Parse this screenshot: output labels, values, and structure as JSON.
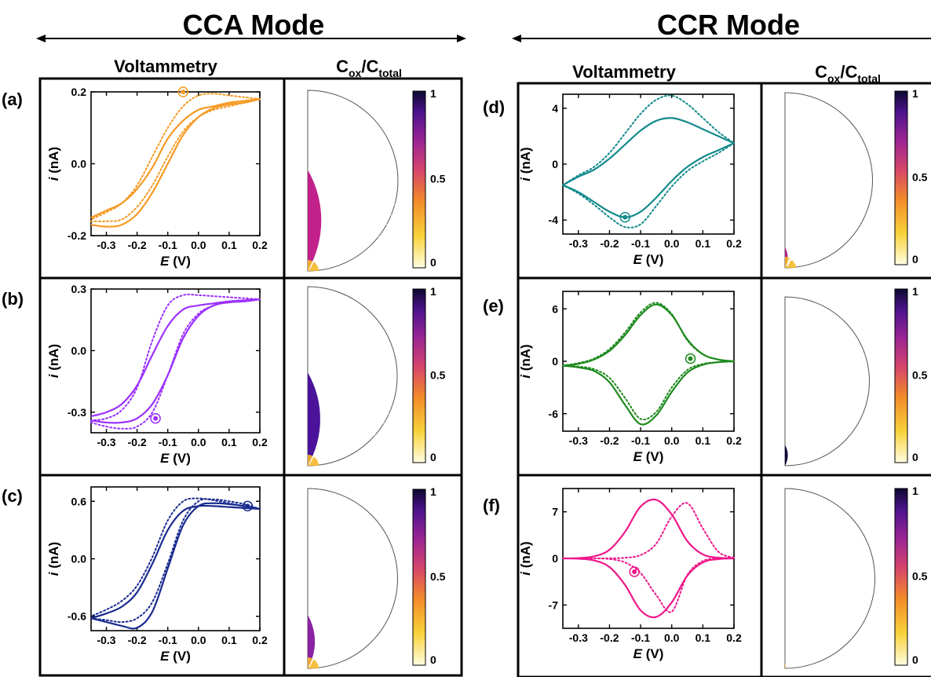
{
  "header": {
    "left_mode": "CCA Mode",
    "right_mode": "CCR Mode",
    "voltammetry_label": "Voltammetry",
    "conc_label_main": "C",
    "conc_label_sub1": "ox",
    "conc_label_slash": "/C",
    "conc_label_sub2": "total"
  },
  "axes": {
    "xlabel_italic": "E",
    "xlabel_unit": " (V)",
    "ylabel_italic": "i",
    "ylabel_unit": " (nA)",
    "xticks": [
      "-0.3",
      "-0.2",
      "-0.1",
      "0.0",
      "0.1",
      "0.2"
    ],
    "xtick_values": [
      -0.3,
      -0.2,
      -0.1,
      0.0,
      0.1,
      0.2
    ],
    "xlim": [
      -0.35,
      0.2
    ]
  },
  "colorbar": {
    "ticks": [
      "1",
      "0.5",
      "0"
    ],
    "colormap": "plasma_r (0 = light yellow, 1 = dark navy)"
  },
  "chart_data": [
    {
      "type": "line",
      "panel": "(a)",
      "color": "#f59a23",
      "ylim": [
        -0.2,
        0.2
      ],
      "yticks": [
        "0.2",
        "0.0",
        "-0.2"
      ],
      "ytick_values": [
        0.2,
        0.0,
        -0.2
      ],
      "series": [
        {
          "style": "solid",
          "x": [
            -0.35,
            -0.3,
            -0.25,
            -0.2,
            -0.15,
            -0.1,
            -0.05,
            0.0,
            0.05,
            0.1,
            0.15,
            0.2
          ],
          "y": [
            -0.17,
            -0.175,
            -0.17,
            -0.14,
            -0.08,
            0.0,
            0.08,
            0.13,
            0.155,
            0.165,
            0.17,
            0.18
          ]
        },
        {
          "style": "solid",
          "x": [
            0.2,
            0.15,
            0.1,
            0.05,
            0.0,
            -0.05,
            -0.1,
            -0.15,
            -0.2,
            -0.25,
            -0.3,
            -0.35
          ],
          "y": [
            0.18,
            0.175,
            0.17,
            0.16,
            0.15,
            0.12,
            0.07,
            -0.01,
            -0.07,
            -0.11,
            -0.13,
            -0.15
          ]
        },
        {
          "style": "dotted",
          "x": [
            -0.35,
            -0.3,
            -0.25,
            -0.2,
            -0.15,
            -0.1,
            -0.05,
            0.0,
            0.05,
            0.1,
            0.15,
            0.2
          ],
          "y": [
            -0.16,
            -0.16,
            -0.155,
            -0.12,
            -0.06,
            0.02,
            0.09,
            0.13,
            0.15,
            0.16,
            0.17,
            0.18
          ]
        },
        {
          "style": "dotted",
          "x": [
            0.2,
            0.15,
            0.1,
            0.05,
            0.0,
            -0.05,
            -0.1,
            -0.15,
            -0.2,
            -0.25,
            -0.3,
            -0.35
          ],
          "y": [
            0.18,
            0.185,
            0.19,
            0.195,
            0.19,
            0.16,
            0.1,
            0.02,
            -0.06,
            -0.11,
            -0.135,
            -0.155
          ]
        }
      ],
      "marker": {
        "x": -0.05,
        "y": 0.2
      }
    },
    {
      "type": "line",
      "panel": "(b)",
      "color": "#9b30ff",
      "ylim": [
        -0.4,
        0.3
      ],
      "yticks": [
        "0.3",
        "0.0",
        "-0.3"
      ],
      "ytick_values": [
        0.3,
        0.0,
        -0.3
      ],
      "series": [
        {
          "style": "solid",
          "x": [
            -0.35,
            -0.3,
            -0.25,
            -0.2,
            -0.15,
            -0.1,
            -0.05,
            0.0,
            0.05,
            0.1,
            0.15,
            0.2
          ],
          "y": [
            -0.34,
            -0.35,
            -0.35,
            -0.33,
            -0.26,
            -0.12,
            0.06,
            0.17,
            0.22,
            0.235,
            0.24,
            0.25
          ]
        },
        {
          "style": "solid",
          "x": [
            0.2,
            0.15,
            0.1,
            0.05,
            0.0,
            -0.05,
            -0.1,
            -0.15,
            -0.2,
            -0.25,
            -0.3,
            -0.35
          ],
          "y": [
            0.25,
            0.245,
            0.24,
            0.23,
            0.22,
            0.2,
            0.12,
            -0.02,
            -0.17,
            -0.26,
            -0.3,
            -0.32
          ]
        },
        {
          "style": "dotted",
          "x": [
            -0.35,
            -0.3,
            -0.25,
            -0.2,
            -0.15,
            -0.1,
            -0.05,
            0.0,
            0.05,
            0.1,
            0.15,
            0.2
          ],
          "y": [
            -0.35,
            -0.37,
            -0.38,
            -0.37,
            -0.3,
            -0.12,
            0.08,
            0.18,
            0.22,
            0.235,
            0.24,
            0.25
          ]
        },
        {
          "style": "dotted",
          "x": [
            0.2,
            0.15,
            0.1,
            0.05,
            0.0,
            -0.05,
            -0.1,
            -0.15,
            -0.2,
            -0.25,
            -0.3,
            -0.35
          ],
          "y": [
            0.25,
            0.255,
            0.26,
            0.265,
            0.27,
            0.27,
            0.22,
            0.05,
            -0.18,
            -0.29,
            -0.33,
            -0.34
          ]
        }
      ],
      "marker": {
        "x": -0.14,
        "y": -0.33
      }
    },
    {
      "type": "line",
      "panel": "(c)",
      "color": "#1a2b8f",
      "ylim": [
        -0.75,
        0.75
      ],
      "yticks": [
        "0.6",
        "0.0",
        "-0.6"
      ],
      "ytick_values": [
        0.6,
        0.0,
        -0.6
      ],
      "series": [
        {
          "style": "solid",
          "x": [
            -0.35,
            -0.3,
            -0.25,
            -0.2,
            -0.15,
            -0.1,
            -0.05,
            0.0,
            0.05,
            0.1,
            0.15,
            0.2
          ],
          "y": [
            -0.62,
            -0.66,
            -0.7,
            -0.72,
            -0.55,
            -0.1,
            0.35,
            0.55,
            0.58,
            0.57,
            0.55,
            0.52
          ]
        },
        {
          "style": "solid",
          "x": [
            0.2,
            0.15,
            0.1,
            0.05,
            0.0,
            -0.05,
            -0.1,
            -0.15,
            -0.2,
            -0.25,
            -0.3,
            -0.35
          ],
          "y": [
            0.52,
            0.53,
            0.54,
            0.55,
            0.55,
            0.5,
            0.3,
            -0.05,
            -0.35,
            -0.5,
            -0.57,
            -0.62
          ]
        },
        {
          "style": "dotted",
          "x": [
            -0.35,
            -0.3,
            -0.25,
            -0.2,
            -0.15,
            -0.1,
            -0.05,
            0.0,
            0.05,
            0.1,
            0.15,
            0.2
          ],
          "y": [
            -0.62,
            -0.64,
            -0.66,
            -0.62,
            -0.45,
            -0.05,
            0.4,
            0.6,
            0.62,
            0.6,
            0.57,
            0.52
          ]
        },
        {
          "style": "dotted",
          "x": [
            0.2,
            0.15,
            0.1,
            0.05,
            0.0,
            -0.05,
            -0.1,
            -0.15,
            -0.2,
            -0.25,
            -0.3,
            -0.35
          ],
          "y": [
            0.52,
            0.55,
            0.58,
            0.61,
            0.63,
            0.6,
            0.4,
            0.02,
            -0.28,
            -0.44,
            -0.53,
            -0.6
          ]
        }
      ],
      "marker": {
        "x": 0.16,
        "y": 0.55
      }
    },
    {
      "type": "line",
      "panel": "(d)",
      "color": "#148a8c",
      "ylim": [
        -5,
        5
      ],
      "yticks": [
        "4",
        "0",
        "-4"
      ],
      "ytick_values": [
        4,
        0,
        -4
      ],
      "series": [
        {
          "style": "solid",
          "x": [
            -0.35,
            -0.3,
            -0.25,
            -0.2,
            -0.15,
            -0.1,
            -0.05,
            0.0,
            0.05,
            0.1,
            0.15,
            0.2
          ],
          "y": [
            -1.5,
            -0.9,
            -0.4,
            0.4,
            1.4,
            2.4,
            3.1,
            3.3,
            3.0,
            2.5,
            2.0,
            1.5
          ]
        },
        {
          "style": "solid",
          "x": [
            0.2,
            0.15,
            0.1,
            0.05,
            0.0,
            -0.05,
            -0.1,
            -0.15,
            -0.2,
            -0.25,
            -0.3,
            -0.35
          ],
          "y": [
            1.5,
            1.0,
            0.5,
            -0.2,
            -1.2,
            -2.4,
            -3.4,
            -3.8,
            -3.4,
            -2.7,
            -2.0,
            -1.5
          ]
        },
        {
          "style": "dotted",
          "x": [
            -0.35,
            -0.3,
            -0.25,
            -0.2,
            -0.15,
            -0.1,
            -0.05,
            0.0,
            0.05,
            0.1,
            0.15,
            0.2
          ],
          "y": [
            -1.5,
            -0.8,
            -0.2,
            0.8,
            2.2,
            3.6,
            4.6,
            4.9,
            4.3,
            3.3,
            2.3,
            1.5
          ]
        },
        {
          "style": "dotted",
          "x": [
            0.2,
            0.15,
            0.1,
            0.05,
            0.0,
            -0.05,
            -0.1,
            -0.15,
            -0.2,
            -0.25,
            -0.3,
            -0.35
          ],
          "y": [
            1.5,
            0.8,
            0.2,
            -0.5,
            -1.6,
            -3.0,
            -4.3,
            -4.5,
            -3.8,
            -2.9,
            -2.1,
            -1.5
          ]
        }
      ],
      "marker": {
        "x": -0.15,
        "y": -3.8
      }
    },
    {
      "type": "line",
      "panel": "(e)",
      "color": "#1f8a1f",
      "ylim": [
        -8,
        8
      ],
      "yticks": [
        "6",
        "0",
        "-6"
      ],
      "ytick_values": [
        6,
        0,
        -6
      ],
      "series": [
        {
          "style": "solid",
          "x": [
            -0.35,
            -0.3,
            -0.25,
            -0.2,
            -0.15,
            -0.1,
            -0.05,
            0.0,
            0.05,
            0.1,
            0.15,
            0.2
          ],
          "y": [
            -0.5,
            -0.3,
            0.2,
            1.2,
            3.0,
            5.3,
            6.5,
            5.3,
            2.5,
            0.8,
            0.2,
            0.0
          ]
        },
        {
          "style": "solid",
          "x": [
            0.2,
            0.15,
            0.1,
            0.05,
            0.0,
            -0.05,
            -0.1,
            -0.15,
            -0.2,
            -0.25,
            -0.3,
            -0.35
          ],
          "y": [
            0.0,
            -0.1,
            -0.4,
            -1.3,
            -3.5,
            -6.2,
            -7.2,
            -5.0,
            -2.4,
            -1.1,
            -0.7,
            -0.5
          ]
        },
        {
          "style": "dotted",
          "x": [
            -0.35,
            -0.3,
            -0.25,
            -0.2,
            -0.15,
            -0.1,
            -0.05,
            0.0,
            0.05,
            0.1,
            0.15,
            0.2
          ],
          "y": [
            -0.5,
            -0.2,
            0.3,
            1.4,
            3.3,
            5.6,
            6.7,
            5.4,
            2.4,
            0.8,
            0.2,
            0.0
          ]
        },
        {
          "style": "dotted",
          "x": [
            0.2,
            0.15,
            0.1,
            0.05,
            0.0,
            -0.05,
            -0.1,
            -0.15,
            -0.2,
            -0.25,
            -0.3,
            -0.35
          ],
          "y": [
            0.0,
            -0.1,
            -0.3,
            -1.0,
            -3.0,
            -5.8,
            -6.6,
            -4.2,
            -1.9,
            -0.9,
            -0.6,
            -0.5
          ]
        }
      ],
      "marker": {
        "x": 0.06,
        "y": 0.3
      }
    },
    {
      "type": "line",
      "panel": "(f)",
      "color": "#f0168a",
      "ylim": [
        -10.5,
        10.5
      ],
      "yticks": [
        "7",
        "0",
        "-7"
      ],
      "ytick_values": [
        7,
        0,
        -7
      ],
      "series": [
        {
          "style": "solid",
          "x": [
            -0.35,
            -0.3,
            -0.25,
            -0.2,
            -0.15,
            -0.1,
            -0.05,
            0.0,
            0.05,
            0.1,
            0.15,
            0.2
          ],
          "y": [
            0.0,
            0.05,
            0.3,
            1.3,
            4.0,
            7.8,
            8.8,
            6.6,
            2.6,
            0.6,
            0.1,
            0.0
          ]
        },
        {
          "style": "solid",
          "x": [
            0.2,
            0.15,
            0.1,
            0.05,
            0.0,
            -0.05,
            -0.1,
            -0.15,
            -0.2,
            -0.25,
            -0.3,
            -0.35
          ],
          "y": [
            0.0,
            -0.1,
            -0.6,
            -2.6,
            -6.6,
            -8.8,
            -7.8,
            -4.0,
            -1.3,
            -0.3,
            -0.05,
            0.0
          ]
        },
        {
          "style": "dotted",
          "x": [
            -0.35,
            -0.3,
            -0.25,
            -0.2,
            -0.15,
            -0.1,
            -0.05,
            0.0,
            0.05,
            0.1,
            0.15,
            0.2
          ],
          "y": [
            0.0,
            0.0,
            0.0,
            0.02,
            0.1,
            0.5,
            2.2,
            6.3,
            8.3,
            4.5,
            1.0,
            0.1
          ]
        },
        {
          "style": "dotted",
          "x": [
            0.2,
            0.15,
            0.1,
            0.05,
            0.0,
            -0.05,
            -0.1,
            -0.15,
            -0.2,
            -0.25,
            -0.3,
            -0.35
          ],
          "y": [
            0.1,
            0.0,
            -0.4,
            -2.5,
            -8.0,
            -5.5,
            -2.2,
            -0.6,
            -0.1,
            0.0,
            0.0,
            0.0
          ]
        }
      ],
      "marker": {
        "x": -0.12,
        "y": -2.0
      }
    }
  ],
  "panels": [
    {
      "label": "(a)",
      "dome_fill": "#c2208a",
      "dome_r": 1.0,
      "arrows": "inward-dense"
    },
    {
      "label": "(b)",
      "dome_fill": "#4a139a",
      "dome_r": 0.93,
      "arrows": "outward"
    },
    {
      "label": "(c)",
      "dome_fill": "#8a22a4",
      "dome_r": 0.53,
      "arrows": "outward"
    },
    {
      "label": "(d)",
      "dome_fill": "#b0248e",
      "dome_r": 0.21,
      "arrows": "outward"
    },
    {
      "label": "(e)",
      "dome_fill": "#0e0a3a",
      "dome_r": 0.22,
      "arrows": "none"
    },
    {
      "label": "(f)",
      "dome_fill": "#f3b41c",
      "dome_r": 0.05,
      "arrows": "none"
    }
  ]
}
